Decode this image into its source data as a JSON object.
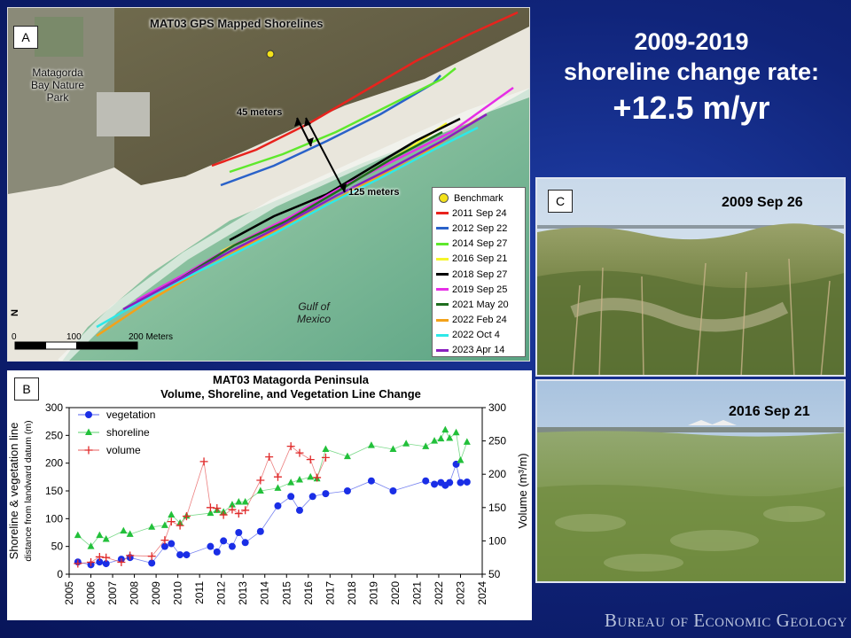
{
  "headline": {
    "line1": "2009-2019",
    "line2": "shoreline change rate:",
    "line3": "+12.5 m/yr"
  },
  "footer": "Bureau of Economic Geology",
  "map": {
    "tag": "A",
    "title": "MAT03 GPS Mapped Shorelines",
    "park_label_1": "Matagorda",
    "park_label_2": "Bay Nature",
    "park_label_3": "Park",
    "gulf_label_1": "Gulf of",
    "gulf_label_2": "Mexico",
    "measure_1": "45 meters",
    "measure_2": "125 meters",
    "north": "N",
    "scale": [
      "0",
      "100",
      "200 Meters"
    ],
    "legend": [
      {
        "label": "Benchmark",
        "color": "#f4e21a",
        "kind": "dot"
      },
      {
        "label": "2011 Sep 24",
        "color": "#e8231d",
        "kind": "line"
      },
      {
        "label": "2012 Sep 22",
        "color": "#2a62c9",
        "kind": "line"
      },
      {
        "label": "2014 Sep 27",
        "color": "#5ee82c",
        "kind": "line"
      },
      {
        "label": "2016 Sep 21",
        "color": "#f5f52a",
        "kind": "line"
      },
      {
        "label": "2018 Sep 27",
        "color": "#000000",
        "kind": "line"
      },
      {
        "label": "2019 Sep 25",
        "color": "#e62ee6",
        "kind": "line"
      },
      {
        "label": "2021 May 20",
        "color": "#1f6e1f",
        "kind": "line"
      },
      {
        "label": "2022 Feb 24",
        "color": "#f3a21a",
        "kind": "line"
      },
      {
        "label": "2022 Oct 4",
        "color": "#2ee8e8",
        "kind": "line"
      },
      {
        "label": "2023 Apr 14",
        "color": "#8a1fbf",
        "kind": "line"
      }
    ]
  },
  "photos": [
    {
      "tag": "C",
      "date": "2009 Sep 26"
    },
    {
      "date": "2016 Sep 21"
    }
  ],
  "chart_data": {
    "type": "scatter",
    "tag": "B",
    "title": "MAT03 Matagorda Peninsula",
    "subtitle": "Volume, Shoreline, and Vegetation Line Change",
    "ylabel_left_1": "Shoreline & vegetation line",
    "ylabel_left_2": "distance from landward datum (m)",
    "ylabel_right": "Volume (m³/m)",
    "xlim": [
      2005,
      2024
    ],
    "ylim_left": [
      0,
      300
    ],
    "ylim_right": [
      50,
      300
    ],
    "x_ticks": [
      "2005",
      "2006",
      "2007",
      "2008",
      "2009",
      "2010",
      "2011",
      "2012",
      "2013",
      "2014",
      "2015",
      "2016",
      "2017",
      "2018",
      "2019",
      "2020",
      "2021",
      "2022",
      "2023",
      "2024"
    ],
    "y_ticks_left": [
      "0",
      "50",
      "100",
      "150",
      "200",
      "250",
      "300"
    ],
    "y_ticks_right": [
      "50",
      "100",
      "150",
      "200",
      "250",
      "300"
    ],
    "legend_position": "top-left",
    "series": [
      {
        "name": "vegetation",
        "color": "#1a2ee6",
        "marker": "circle",
        "axis": "left",
        "x": [
          2005.4,
          2006.0,
          2006.4,
          2006.7,
          2007.4,
          2007.8,
          2008.8,
          2009.4,
          2009.7,
          2010.1,
          2010.4,
          2011.5,
          2011.8,
          2012.1,
          2012.5,
          2012.8,
          2013.1,
          2013.8,
          2014.6,
          2015.2,
          2015.6,
          2016.2,
          2016.8,
          2017.8,
          2018.9,
          2019.9,
          2021.4,
          2021.8,
          2022.1,
          2022.3,
          2022.5,
          2022.8,
          2023.0,
          2023.3
        ],
        "y": [
          22,
          17,
          22,
          19,
          27,
          30,
          20,
          50,
          55,
          35,
          35,
          50,
          40,
          60,
          50,
          75,
          57,
          77,
          123,
          140,
          115,
          140,
          145,
          150,
          168,
          150,
          168,
          162,
          165,
          160,
          165,
          198,
          165,
          166
        ]
      },
      {
        "name": "shoreline",
        "color": "#22c03a",
        "marker": "triangle",
        "axis": "left",
        "x": [
          2005.4,
          2006.0,
          2006.4,
          2006.7,
          2007.5,
          2007.8,
          2008.8,
          2009.4,
          2009.7,
          2010.1,
          2010.4,
          2011.5,
          2011.8,
          2012.1,
          2012.5,
          2012.8,
          2013.1,
          2013.8,
          2014.6,
          2015.2,
          2015.6,
          2016.1,
          2016.4,
          2016.8,
          2017.8,
          2018.9,
          2019.9,
          2020.5,
          2021.4,
          2021.8,
          2022.1,
          2022.3,
          2022.5,
          2022.8,
          2023.0,
          2023.3
        ],
        "y": [
          70,
          50,
          70,
          63,
          78,
          72,
          85,
          88,
          107,
          92,
          105,
          110,
          115,
          112,
          125,
          130,
          130,
          150,
          155,
          165,
          170,
          175,
          172,
          225,
          212,
          232,
          225,
          235,
          230,
          240,
          244,
          260,
          245,
          255,
          205,
          238
        ]
      },
      {
        "name": "volume",
        "color": "#e02a2a",
        "marker": "plus",
        "axis": "right",
        "x": [
          2005.4,
          2006.0,
          2006.4,
          2006.7,
          2007.4,
          2007.8,
          2008.8,
          2009.4,
          2009.7,
          2010.1,
          2010.4,
          2011.2,
          2011.5,
          2011.8,
          2012.1,
          2012.5,
          2012.8,
          2013.1,
          2013.8,
          2014.2,
          2014.6,
          2015.2,
          2015.6,
          2016.1,
          2016.4,
          2016.8
        ],
        "y": [
          66,
          68,
          76,
          75,
          68,
          78,
          77,
          101,
          129,
          123,
          137,
          219,
          150,
          149,
          139,
          147,
          141,
          146,
          191,
          226,
          196,
          242,
          232,
          222,
          195,
          225
        ]
      }
    ]
  }
}
